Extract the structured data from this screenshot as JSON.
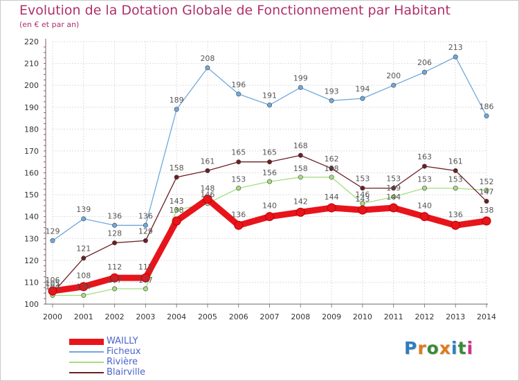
{
  "header": {
    "title": "Evolution de la Dotation Globale de Fonctionnement par Habitant",
    "subtitle": "(en € et par an)"
  },
  "logo": {
    "text": "Proxiti",
    "colors": [
      "#2f7dc0",
      "#e07a1a",
      "#3a8a3a",
      "#e07a1a",
      "#2f7dc0",
      "#3a8a3a",
      "#d0308a"
    ]
  },
  "chart_data": {
    "type": "line",
    "title": "Evolution de la Dotation Globale de Fonctionnement par Habitant",
    "subtitle": "(en € et par an)",
    "x": [
      "2000",
      "2001",
      "2002",
      "2003",
      "2004",
      "2005",
      "2006",
      "2007",
      "2008",
      "2009",
      "2010",
      "2011",
      "2012",
      "2013",
      "2014"
    ],
    "ylim": [
      100,
      220
    ],
    "yticks": [
      100,
      110,
      120,
      130,
      140,
      150,
      160,
      170,
      180,
      190,
      200,
      210,
      220
    ],
    "grid": true,
    "legend_position": "bottom-left",
    "series": [
      {
        "name": "WAILLY",
        "color": "#e8141b",
        "values": [
          106,
          108,
          112,
          112,
          138,
          148,
          136,
          140,
          142,
          144,
          143,
          144,
          140,
          136,
          138
        ]
      },
      {
        "name": "Ficheux",
        "color": "#6fa8dc",
        "values": [
          129,
          139,
          136,
          136,
          189,
          208,
          196,
          191,
          199,
          193,
          194,
          200,
          206,
          213,
          186
        ]
      },
      {
        "name": "Rivière",
        "color": "#a6dd80",
        "values": [
          104,
          104,
          107,
          107,
          143,
          146,
          153,
          156,
          158,
          158,
          146,
          149,
          153,
          153,
          152
        ]
      },
      {
        "name": "Blairville",
        "color": "#6b1f24",
        "values": [
          105,
          121,
          128,
          129,
          158,
          161,
          165,
          165,
          168,
          162,
          153,
          153,
          163,
          161,
          147
        ]
      }
    ]
  }
}
